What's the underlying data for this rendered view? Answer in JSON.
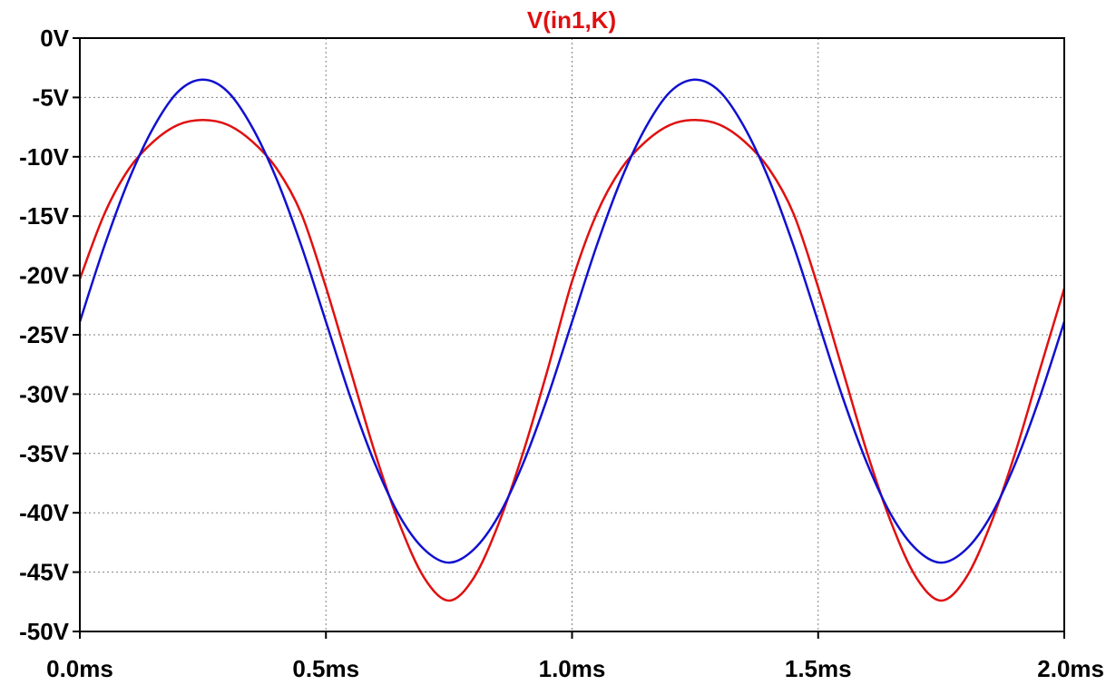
{
  "chart_data": {
    "type": "line",
    "title": "V(in1,K)",
    "title_color": "#e01010",
    "xlabel": "",
    "ylabel": "",
    "xlim": [
      0.0,
      2.0
    ],
    "ylim": [
      -50,
      0
    ],
    "x_ticks": [
      {
        "value": 0.0,
        "label": "0.0ms"
      },
      {
        "value": 0.5,
        "label": "0.5ms"
      },
      {
        "value": 1.0,
        "label": "1.0ms"
      },
      {
        "value": 1.5,
        "label": "1.5ms"
      },
      {
        "value": 2.0,
        "label": "2.0ms"
      }
    ],
    "y_ticks": [
      {
        "value": 0,
        "label": "0V"
      },
      {
        "value": -5,
        "label": "-5V"
      },
      {
        "value": -10,
        "label": "-10V"
      },
      {
        "value": -15,
        "label": "-15V"
      },
      {
        "value": -20,
        "label": "-20V"
      },
      {
        "value": -25,
        "label": "-25V"
      },
      {
        "value": -30,
        "label": "-30V"
      },
      {
        "value": -35,
        "label": "-35V"
      },
      {
        "value": -40,
        "label": "-40V"
      },
      {
        "value": -45,
        "label": "-45V"
      },
      {
        "value": -50,
        "label": "-50V"
      }
    ],
    "grid": true,
    "series": [
      {
        "color": "#e01010",
        "x": [
          0.0,
          0.05,
          0.1,
          0.15,
          0.2,
          0.25,
          0.3,
          0.35,
          0.4,
          0.45,
          0.5,
          0.55,
          0.6,
          0.65,
          0.7,
          0.75,
          0.8,
          0.85,
          0.9,
          0.95,
          1.0,
          1.05,
          1.1,
          1.15,
          1.2,
          1.25,
          1.3,
          1.35,
          1.4,
          1.45,
          1.5,
          1.55,
          1.6,
          1.65,
          1.7,
          1.75,
          1.8,
          1.85,
          1.9,
          1.95,
          2.0
        ],
        "y": [
          -20.3,
          -14.8,
          -11.0,
          -8.7,
          -7.3,
          -6.9,
          -7.3,
          -8.7,
          -11.0,
          -14.8,
          -21.0,
          -28.0,
          -35.0,
          -41.0,
          -45.5,
          -47.4,
          -45.5,
          -41.0,
          -35.0,
          -28.0,
          -20.5,
          -14.8,
          -11.0,
          -8.7,
          -7.3,
          -6.9,
          -7.3,
          -8.7,
          -11.0,
          -14.8,
          -21.0,
          -28.0,
          -35.0,
          -41.0,
          -45.5,
          -47.4,
          -45.5,
          -41.0,
          -35.0,
          -28.0,
          -21.1
        ]
      },
      {
        "color": "#1010d0",
        "x": [
          0.0,
          0.05,
          0.1,
          0.15,
          0.2,
          0.25,
          0.3,
          0.35,
          0.4,
          0.45,
          0.5,
          0.55,
          0.6,
          0.65,
          0.7,
          0.75,
          0.8,
          0.85,
          0.9,
          0.95,
          1.0,
          1.05,
          1.1,
          1.15,
          1.2,
          1.25,
          1.3,
          1.35,
          1.4,
          1.45,
          1.5,
          1.55,
          1.6,
          1.65,
          1.7,
          1.75,
          1.8,
          1.85,
          1.9,
          1.95,
          2.0
        ],
        "y": [
          -23.9,
          -17.5,
          -11.9,
          -7.5,
          -4.5,
          -3.5,
          -4.5,
          -7.5,
          -11.9,
          -17.5,
          -23.9,
          -30.3,
          -35.9,
          -40.3,
          -43.1,
          -44.2,
          -43.1,
          -40.3,
          -35.9,
          -30.3,
          -23.9,
          -17.5,
          -11.9,
          -7.5,
          -4.5,
          -3.5,
          -4.5,
          -7.5,
          -11.9,
          -17.5,
          -23.9,
          -30.3,
          -35.9,
          -40.3,
          -43.1,
          -44.2,
          -43.1,
          -40.3,
          -35.9,
          -30.3,
          -23.9
        ]
      }
    ]
  }
}
